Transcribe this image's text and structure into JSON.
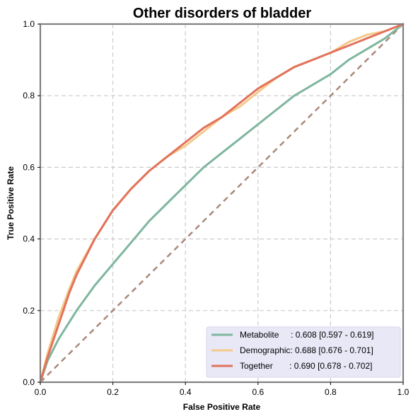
{
  "chart_data": {
    "type": "line",
    "title": "Other disorders of  bladder",
    "xlabel": "False Positive Rate",
    "ylabel": "True Positive Rate",
    "xlim": [
      0,
      1
    ],
    "ylim": [
      0,
      1
    ],
    "xticks": [
      "0.0",
      "0.2",
      "0.4",
      "0.6",
      "0.8",
      "1.0"
    ],
    "yticks": [
      "0.0",
      "0.2",
      "0.4",
      "0.6",
      "0.8",
      "1.0"
    ],
    "grid": true,
    "legend_position": "lower-right",
    "diagonal": {
      "x": [
        0,
        1
      ],
      "y": [
        0,
        1
      ],
      "color": "#a9897a",
      "style": "dashed"
    },
    "series": [
      {
        "name": "Metabolite",
        "legend_label": "Metabolite     : 0.608 [0.597 - 0.619]",
        "color": "#7fb69e",
        "x": [
          0,
          0.02,
          0.05,
          0.1,
          0.15,
          0.2,
          0.25,
          0.3,
          0.35,
          0.4,
          0.45,
          0.5,
          0.55,
          0.6,
          0.65,
          0.7,
          0.75,
          0.8,
          0.85,
          0.9,
          0.95,
          1.0
        ],
        "y": [
          0,
          0.06,
          0.12,
          0.2,
          0.27,
          0.33,
          0.39,
          0.45,
          0.5,
          0.55,
          0.6,
          0.64,
          0.68,
          0.72,
          0.76,
          0.8,
          0.83,
          0.86,
          0.9,
          0.93,
          0.96,
          1.0
        ]
      },
      {
        "name": "Demographic",
        "legend_label": "Demographic: 0.688 [0.676 - 0.701]",
        "color": "#f4c98a",
        "x": [
          0,
          0.02,
          0.05,
          0.08,
          0.1,
          0.15,
          0.2,
          0.25,
          0.3,
          0.35,
          0.4,
          0.45,
          0.5,
          0.55,
          0.6,
          0.65,
          0.7,
          0.75,
          0.8,
          0.85,
          0.9,
          0.95,
          1.0
        ],
        "y": [
          0,
          0.08,
          0.18,
          0.26,
          0.31,
          0.4,
          0.48,
          0.54,
          0.59,
          0.63,
          0.66,
          0.7,
          0.74,
          0.77,
          0.81,
          0.85,
          0.88,
          0.9,
          0.92,
          0.95,
          0.97,
          0.98,
          1.0
        ]
      },
      {
        "name": "Together",
        "legend_label": "Together       : 0.690 [0.678 - 0.702]",
        "color": "#e2725b",
        "x": [
          0,
          0.02,
          0.05,
          0.08,
          0.1,
          0.15,
          0.2,
          0.25,
          0.3,
          0.35,
          0.4,
          0.45,
          0.5,
          0.55,
          0.6,
          0.65,
          0.7,
          0.75,
          0.8,
          0.85,
          0.9,
          0.95,
          1.0
        ],
        "y": [
          0,
          0.07,
          0.16,
          0.25,
          0.3,
          0.4,
          0.48,
          0.54,
          0.59,
          0.63,
          0.67,
          0.71,
          0.74,
          0.78,
          0.82,
          0.85,
          0.88,
          0.9,
          0.92,
          0.94,
          0.96,
          0.98,
          1.0
        ]
      }
    ]
  }
}
